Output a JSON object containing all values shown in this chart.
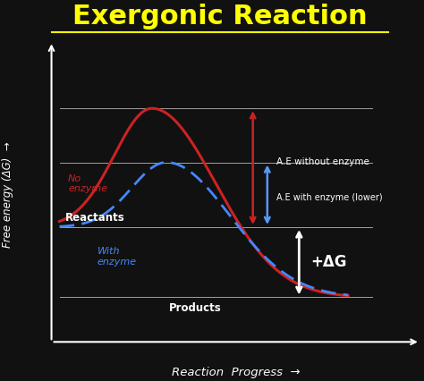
{
  "title": "Exergonic Reaction",
  "title_color": "#FFFF00",
  "title_fontsize": 22,
  "bg_color": "#111111",
  "axes_color": "#ffffff",
  "xlabel": "Reaction  Progress  →",
  "ylabel": "Free energy (ΔG)  →",
  "reactants_level": 0.38,
  "products_level": 0.12,
  "no_enzyme_peak": 0.82,
  "with_enzyme_peak": 0.62,
  "reactants_label": "Reactants",
  "products_label": "Products",
  "no_enzyme_label": "No\nenzyme",
  "with_enzyme_label": "With\nenzyme",
  "ae_no_enzyme_label": "A.E without enzyme",
  "ae_with_enzyme_label": "A.E with enzyme (lower)",
  "delta_g_label": "+ΔG",
  "red_curve_color": "#cc2222",
  "blue_curve_color": "#4488ff",
  "white_color": "#ffffff",
  "arrow_red": "#cc2222",
  "arrow_blue": "#5599ff",
  "arrow_white": "#ffffff"
}
